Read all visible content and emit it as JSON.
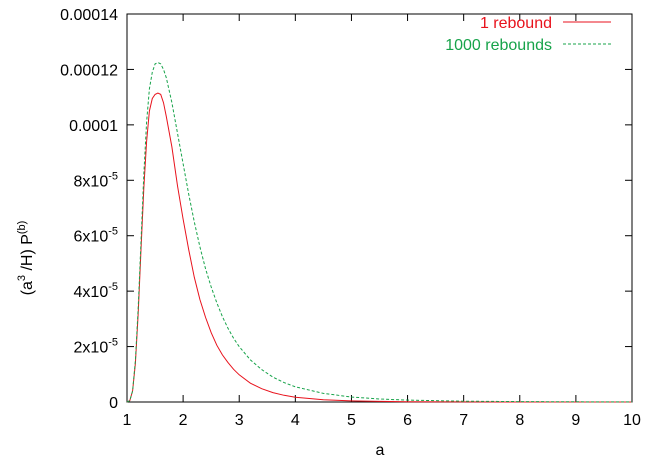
{
  "chart_data": {
    "type": "line",
    "title": "",
    "xlabel": "a",
    "ylabel": "(a³ /H) P^(b)",
    "ylabel_parts": {
      "pre": "(a",
      "sup1": "3",
      "mid": " /H) P",
      "sup2": "(b)"
    },
    "xlim": [
      1,
      10
    ],
    "ylim": [
      0,
      0.00014
    ],
    "xticks": [
      1,
      2,
      3,
      4,
      5,
      6,
      7,
      8,
      9,
      10
    ],
    "xtick_labels": [
      "1",
      "2",
      "3",
      "4",
      "5",
      "6",
      "7",
      "8",
      "9",
      "10"
    ],
    "yticks": [
      0,
      2e-05,
      4e-05,
      6e-05,
      8e-05,
      0.0001,
      0.00012,
      0.00014
    ],
    "ytick_labels": [
      {
        "base": "0",
        "exp": ""
      },
      {
        "base": "2x10",
        "exp": "-5"
      },
      {
        "base": "4x10",
        "exp": "-5"
      },
      {
        "base": "6x10",
        "exp": "-5"
      },
      {
        "base": "8x10",
        "exp": "-5"
      },
      {
        "base": "0.0001",
        "exp": ""
      },
      {
        "base": "0.00012",
        "exp": ""
      },
      {
        "base": "0.00014",
        "exp": ""
      }
    ],
    "grid": false,
    "legend_position": "top-right",
    "series": [
      {
        "name": "1 rebound",
        "color": "#e8121c",
        "dash": "solid",
        "x": [
          1.0,
          1.05,
          1.1,
          1.15,
          1.2,
          1.25,
          1.3,
          1.35,
          1.4,
          1.45,
          1.5,
          1.55,
          1.6,
          1.65,
          1.7,
          1.8,
          1.9,
          2.0,
          2.1,
          2.2,
          2.3,
          2.4,
          2.5,
          2.6,
          2.7,
          2.8,
          2.9,
          3.0,
          3.2,
          3.4,
          3.6,
          3.8,
          4.0,
          4.5,
          5.0,
          5.5,
          6.0,
          7.0,
          8.0,
          9.0,
          10.0
        ],
        "y": [
          0,
          5e-07,
          4e-06,
          1.4e-05,
          3.2e-05,
          5.5e-05,
          7.7e-05,
          9.4e-05,
          0.000105,
          0.0001095,
          0.000111,
          0.0001115,
          0.000111,
          0.000108,
          0.000103,
          9.2e-05,
          7.8e-05,
          6.6e-05,
          5.5e-05,
          4.5e-05,
          3.7e-05,
          3.05e-05,
          2.5e-05,
          2.05e-05,
          1.7e-05,
          1.42e-05,
          1.18e-05,
          9.8e-06,
          6.8e-06,
          4.8e-06,
          3.4e-06,
          2.4e-06,
          1.7e-06,
          8e-07,
          4e-07,
          2e-07,
          1e-07,
          3e-08,
          1e-08,
          0,
          0
        ]
      },
      {
        "name": "1000 rebounds",
        "color": "#17a34a",
        "dash": "dashed",
        "x": [
          1.0,
          1.05,
          1.1,
          1.15,
          1.2,
          1.25,
          1.3,
          1.35,
          1.4,
          1.45,
          1.5,
          1.55,
          1.6,
          1.65,
          1.7,
          1.8,
          1.9,
          2.0,
          2.1,
          2.2,
          2.3,
          2.4,
          2.5,
          2.6,
          2.7,
          2.8,
          2.9,
          3.0,
          3.2,
          3.4,
          3.6,
          3.8,
          4.0,
          4.5,
          5.0,
          5.5,
          6.0,
          7.0,
          8.0,
          9.0,
          10.0
        ],
        "y": [
          0,
          5e-07,
          4e-06,
          1.5e-05,
          3.4e-05,
          5.8e-05,
          8.2e-05,
          0.000101,
          0.000113,
          0.000119,
          0.000122,
          0.0001225,
          0.000122,
          0.00012,
          0.000117,
          0.000108,
          9.7e-05,
          8.6e-05,
          7.5e-05,
          6.5e-05,
          5.6e-05,
          4.8e-05,
          4.15e-05,
          3.58e-05,
          3.08e-05,
          2.66e-05,
          2.3e-05,
          2e-05,
          1.52e-05,
          1.17e-05,
          9e-06,
          7e-06,
          5.5e-06,
          3.1e-06,
          1.8e-06,
          1.1e-06,
          7e-07,
          3e-07,
          1.5e-07,
          7e-08,
          3e-08
        ]
      }
    ]
  }
}
